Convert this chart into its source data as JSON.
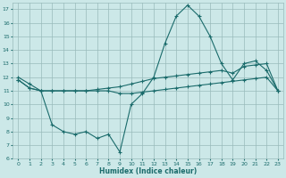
{
  "xlabel": "Humidex (Indice chaleur)",
  "bg_color": "#cce8e8",
  "grid_color": "#99bbbb",
  "line_color": "#1a6b6b",
  "xlim": [
    -0.5,
    23.5
  ],
  "ylim": [
    6,
    17.5
  ],
  "xticks": [
    0,
    1,
    2,
    3,
    4,
    5,
    6,
    7,
    8,
    9,
    10,
    11,
    12,
    13,
    14,
    15,
    16,
    17,
    18,
    19,
    20,
    21,
    22,
    23
  ],
  "yticks": [
    6,
    7,
    8,
    9,
    10,
    11,
    12,
    13,
    14,
    15,
    16,
    17
  ],
  "line1_x": [
    0,
    1,
    2,
    3,
    4,
    5,
    6,
    7,
    8,
    9,
    10,
    11,
    12,
    13,
    14,
    15,
    16,
    17,
    18,
    19,
    20,
    21,
    22,
    23
  ],
  "line1_y": [
    12.0,
    11.5,
    11.0,
    8.5,
    8.0,
    7.8,
    8.0,
    7.5,
    7.8,
    6.5,
    10.0,
    10.8,
    12.0,
    14.5,
    16.5,
    17.3,
    16.5,
    15.0,
    13.0,
    11.8,
    13.0,
    13.2,
    12.5,
    11.0
  ],
  "line2_x": [
    0,
    1,
    2,
    3,
    4,
    5,
    6,
    7,
    8,
    9,
    10,
    11,
    12,
    13,
    14,
    15,
    16,
    17,
    18,
    19,
    20,
    21,
    22,
    23
  ],
  "line2_y": [
    11.8,
    11.2,
    11.0,
    11.0,
    11.0,
    11.0,
    11.0,
    11.1,
    11.2,
    11.3,
    11.5,
    11.7,
    11.9,
    12.0,
    12.1,
    12.2,
    12.3,
    12.4,
    12.5,
    12.3,
    12.8,
    12.9,
    13.0,
    11.0
  ],
  "line3_x": [
    0,
    1,
    2,
    3,
    4,
    5,
    6,
    7,
    8,
    9,
    10,
    11,
    12,
    13,
    14,
    15,
    16,
    17,
    18,
    19,
    20,
    21,
    22,
    23
  ],
  "line3_y": [
    11.8,
    11.2,
    11.0,
    11.0,
    11.0,
    11.0,
    11.0,
    11.0,
    11.0,
    10.8,
    10.8,
    10.9,
    11.0,
    11.1,
    11.2,
    11.3,
    11.4,
    11.5,
    11.6,
    11.7,
    11.8,
    11.9,
    12.0,
    11.0
  ]
}
